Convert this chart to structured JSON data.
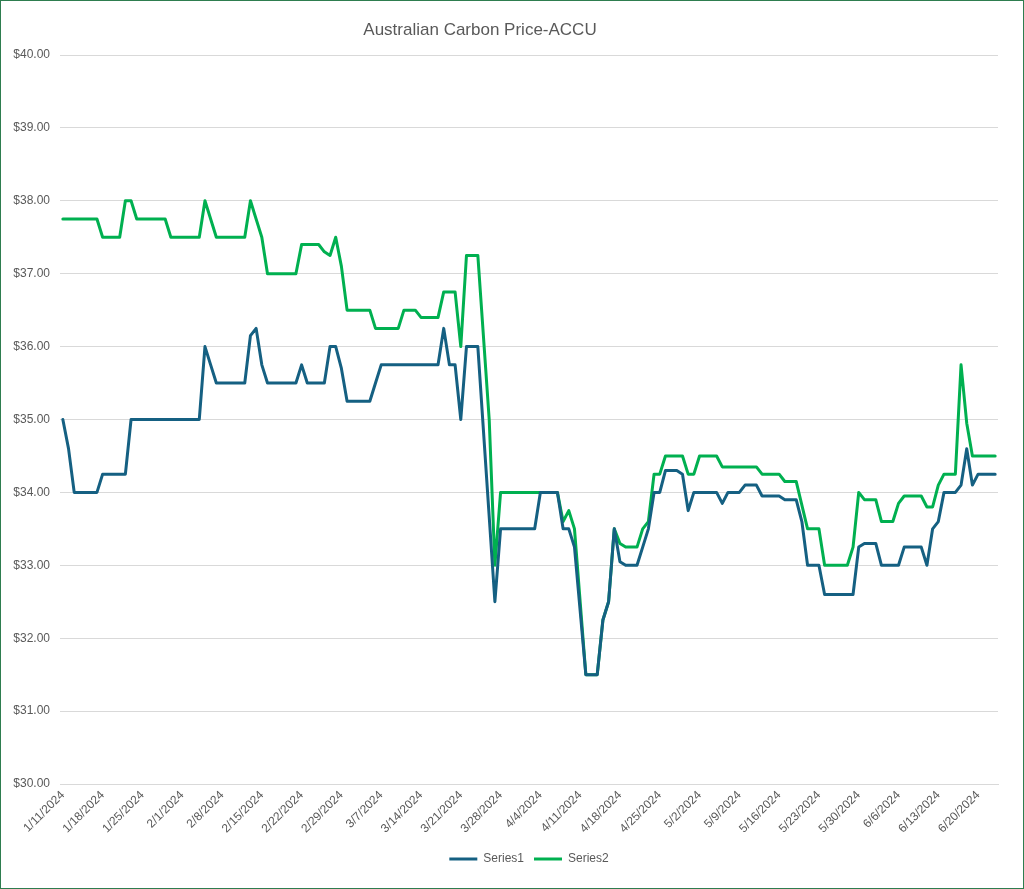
{
  "chart_data": {
    "type": "line",
    "title": "Australian Carbon Price-ACCU",
    "series": [
      {
        "name": "Series1",
        "color": "#156082",
        "x": [
          "2024-01-11",
          "2024-01-12",
          "2024-01-13",
          "2024-01-17",
          "2024-01-18",
          "2024-01-22",
          "2024-01-23",
          "2024-02-04",
          "2024-02-05",
          "2024-02-06",
          "2024-02-07",
          "2024-02-12",
          "2024-02-13",
          "2024-02-14",
          "2024-02-15",
          "2024-02-16",
          "2024-02-21",
          "2024-02-22",
          "2024-02-23",
          "2024-02-26",
          "2024-02-27",
          "2024-02-28",
          "2024-02-29",
          "2024-03-01",
          "2024-03-05",
          "2024-03-06",
          "2024-03-07",
          "2024-03-17",
          "2024-03-18",
          "2024-03-19",
          "2024-03-20",
          "2024-03-21",
          "2024-03-22",
          "2024-03-24",
          "2024-03-27",
          "2024-03-28",
          "2024-04-03",
          "2024-04-04",
          "2024-04-07",
          "2024-04-08",
          "2024-04-09",
          "2024-04-10",
          "2024-04-12",
          "2024-04-14",
          "2024-04-15",
          "2024-04-16",
          "2024-04-17",
          "2024-04-18",
          "2024-04-19",
          "2024-04-21",
          "2024-04-22",
          "2024-04-23",
          "2024-04-24",
          "2024-04-25",
          "2024-04-26",
          "2024-04-28",
          "2024-04-29",
          "2024-04-30",
          "2024-05-01",
          "2024-05-05",
          "2024-05-06",
          "2024-05-07",
          "2024-05-09",
          "2024-05-10",
          "2024-05-12",
          "2024-05-13",
          "2024-05-16",
          "2024-05-17",
          "2024-05-19",
          "2024-05-20",
          "2024-05-21",
          "2024-05-23",
          "2024-05-24",
          "2024-05-29",
          "2024-05-30",
          "2024-05-31",
          "2024-06-02",
          "2024-06-03",
          "2024-06-06",
          "2024-06-07",
          "2024-06-10",
          "2024-06-11",
          "2024-06-12",
          "2024-06-13",
          "2024-06-14",
          "2024-06-16",
          "2024-06-17",
          "2024-06-18",
          "2024-06-19",
          "2024-06-20",
          "2024-06-23"
        ],
        "values": [
          35.0,
          34.6,
          34.0,
          34.0,
          34.25,
          34.25,
          35.0,
          35.0,
          36.0,
          35.75,
          35.5,
          35.5,
          36.15,
          36.25,
          35.75,
          35.5,
          35.5,
          35.75,
          35.5,
          35.5,
          36.0,
          36.0,
          35.7,
          35.25,
          35.25,
          35.5,
          35.75,
          35.75,
          36.25,
          35.75,
          35.75,
          35.0,
          36.0,
          36.0,
          32.5,
          33.5,
          33.5,
          34.0,
          34.0,
          33.5,
          33.5,
          33.25,
          31.5,
          31.5,
          32.25,
          32.5,
          33.5,
          33.05,
          33.0,
          33.0,
          33.25,
          33.5,
          34.0,
          34.0,
          34.3,
          34.3,
          34.25,
          33.75,
          34.0,
          34.0,
          33.85,
          34.0,
          34.0,
          34.1,
          34.1,
          33.95,
          33.95,
          33.9,
          33.9,
          33.6,
          33.0,
          33.0,
          32.6,
          32.6,
          33.25,
          33.3,
          33.3,
          33.0,
          33.0,
          33.25,
          33.25,
          33.0,
          33.5,
          33.6,
          34.0,
          34.0,
          34.1,
          34.6,
          34.1,
          34.25,
          34.25
        ]
      },
      {
        "name": "Series2",
        "color": "#00b050",
        "x": [
          "2024-01-11",
          "2024-01-17",
          "2024-01-18",
          "2024-01-21",
          "2024-01-22",
          "2024-01-23",
          "2024-01-24",
          "2024-01-29",
          "2024-01-30",
          "2024-02-04",
          "2024-02-05",
          "2024-02-07",
          "2024-02-12",
          "2024-02-13",
          "2024-02-15",
          "2024-02-16",
          "2024-02-21",
          "2024-02-22",
          "2024-02-25",
          "2024-02-26",
          "2024-02-27",
          "2024-02-28",
          "2024-02-29",
          "2024-03-01",
          "2024-03-05",
          "2024-03-06",
          "2024-03-10",
          "2024-03-11",
          "2024-03-13",
          "2024-03-14",
          "2024-03-17",
          "2024-03-18",
          "2024-03-20",
          "2024-03-21",
          "2024-03-22",
          "2024-03-24",
          "2024-03-26",
          "2024-03-27",
          "2024-03-28",
          "2024-04-07",
          "2024-04-08",
          "2024-04-09",
          "2024-04-10",
          "2024-04-12",
          "2024-04-14",
          "2024-04-15",
          "2024-04-16",
          "2024-04-17",
          "2024-04-18",
          "2024-04-19",
          "2024-04-21",
          "2024-04-22",
          "2024-04-23",
          "2024-04-24",
          "2024-04-25",
          "2024-04-26",
          "2024-04-29",
          "2024-04-30",
          "2024-05-01",
          "2024-05-02",
          "2024-05-05",
          "2024-05-06",
          "2024-05-12",
          "2024-05-13",
          "2024-05-16",
          "2024-05-17",
          "2024-05-19",
          "2024-05-21",
          "2024-05-23",
          "2024-05-24",
          "2024-05-28",
          "2024-05-29",
          "2024-05-30",
          "2024-05-31",
          "2024-06-02",
          "2024-06-03",
          "2024-06-05",
          "2024-06-06",
          "2024-06-07",
          "2024-06-10",
          "2024-06-11",
          "2024-06-12",
          "2024-06-13",
          "2024-06-14",
          "2024-06-16",
          "2024-06-17",
          "2024-06-18",
          "2024-06-19",
          "2024-06-23"
        ],
        "values": [
          37.75,
          37.75,
          37.5,
          37.5,
          38.0,
          38.0,
          37.75,
          37.75,
          37.5,
          37.5,
          38.0,
          37.5,
          37.5,
          38.0,
          37.5,
          37.0,
          37.0,
          37.4,
          37.4,
          37.3,
          37.25,
          37.5,
          37.1,
          36.5,
          36.5,
          36.25,
          36.25,
          36.5,
          36.5,
          36.4,
          36.4,
          36.75,
          36.75,
          36.0,
          37.25,
          37.25,
          35.0,
          33.0,
          34.0,
          34.0,
          33.6,
          33.75,
          33.5,
          31.5,
          31.5,
          32.25,
          32.5,
          33.5,
          33.3,
          33.25,
          33.25,
          33.5,
          33.6,
          34.25,
          34.25,
          34.5,
          34.5,
          34.25,
          34.25,
          34.5,
          34.5,
          34.35,
          34.35,
          34.25,
          34.25,
          34.15,
          34.15,
          33.5,
          33.5,
          33.0,
          33.0,
          33.25,
          34.0,
          33.9,
          33.9,
          33.6,
          33.6,
          33.85,
          33.95,
          33.95,
          33.8,
          33.8,
          34.1,
          34.25,
          34.25,
          35.75,
          34.95,
          34.5,
          34.5
        ]
      }
    ],
    "xlim": [
      "2024-01-10T12:00",
      "2024-06-23T12:00"
    ],
    "xticks": [
      {
        "value": "2024-01-11",
        "label": "1/11/2024"
      },
      {
        "value": "2024-01-18",
        "label": "1/18/2024"
      },
      {
        "value": "2024-01-25",
        "label": "1/25/2024"
      },
      {
        "value": "2024-02-01",
        "label": "2/1/2024"
      },
      {
        "value": "2024-02-08",
        "label": "2/8/2024"
      },
      {
        "value": "2024-02-15",
        "label": "2/15/2024"
      },
      {
        "value": "2024-02-22",
        "label": "2/22/2024"
      },
      {
        "value": "2024-02-29",
        "label": "2/29/2024"
      },
      {
        "value": "2024-03-07",
        "label": "3/7/2024"
      },
      {
        "value": "2024-03-14",
        "label": "3/14/2024"
      },
      {
        "value": "2024-03-21",
        "label": "3/21/2024"
      },
      {
        "value": "2024-03-28",
        "label": "3/28/2024"
      },
      {
        "value": "2024-04-04",
        "label": "4/4/2024"
      },
      {
        "value": "2024-04-11",
        "label": "4/11/2024"
      },
      {
        "value": "2024-04-18",
        "label": "4/18/2024"
      },
      {
        "value": "2024-04-25",
        "label": "4/25/2024"
      },
      {
        "value": "2024-05-02",
        "label": "5/2/2024"
      },
      {
        "value": "2024-05-09",
        "label": "5/9/2024"
      },
      {
        "value": "2024-05-16",
        "label": "5/16/2024"
      },
      {
        "value": "2024-05-23",
        "label": "5/23/2024"
      },
      {
        "value": "2024-05-30",
        "label": "5/30/2024"
      },
      {
        "value": "2024-06-06",
        "label": "6/6/2024"
      },
      {
        "value": "2024-06-13",
        "label": "6/13/2024"
      },
      {
        "value": "2024-06-20",
        "label": "6/20/2024"
      }
    ],
    "ylim": [
      30,
      40
    ],
    "yticks": [
      {
        "value": 30,
        "label": "$30.00"
      },
      {
        "value": 31,
        "label": "$31.00"
      },
      {
        "value": 32,
        "label": "$32.00"
      },
      {
        "value": 33,
        "label": "$33.00"
      },
      {
        "value": 34,
        "label": "$34.00"
      },
      {
        "value": 35,
        "label": "$35.00"
      },
      {
        "value": 36,
        "label": "$36.00"
      },
      {
        "value": 37,
        "label": "$37.00"
      },
      {
        "value": 38,
        "label": "$38.00"
      },
      {
        "value": 39,
        "label": "$39.00"
      },
      {
        "value": 40,
        "label": "$40.00"
      }
    ],
    "grid": "y",
    "legend": "bottom",
    "marker": "none",
    "line_style": "solid"
  }
}
